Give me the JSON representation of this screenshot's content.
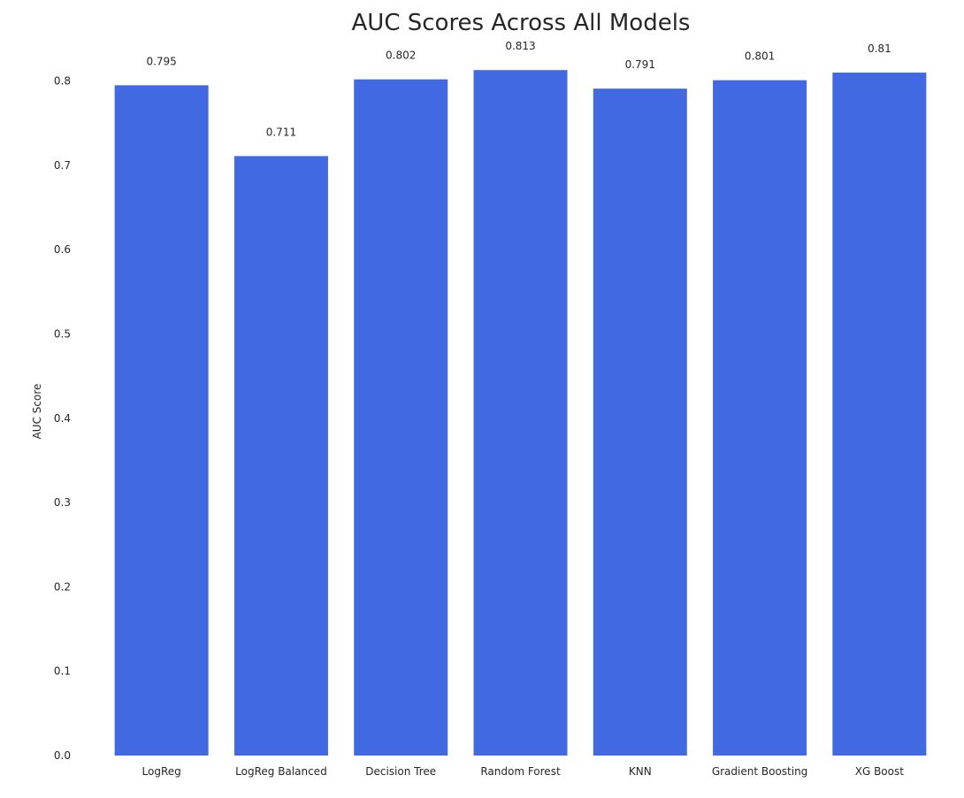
{
  "chart_data": {
    "type": "bar",
    "title": "AUC Scores Across All Models",
    "xlabel": "",
    "ylabel": "AUC Score",
    "categories": [
      "LogReg",
      "LogReg Balanced",
      "Decision Tree",
      "Random Forest",
      "KNN",
      "Gradient Boosting",
      "XG Boost"
    ],
    "values": [
      0.795,
      0.711,
      0.802,
      0.813,
      0.791,
      0.801,
      0.81
    ],
    "data_labels": [
      "0.795",
      "0.711",
      "0.802",
      "0.813",
      "0.791",
      "0.801",
      "0.81"
    ],
    "yticks": [
      0.0,
      0.1,
      0.2,
      0.3,
      0.4,
      0.5,
      0.6,
      0.7,
      0.8
    ],
    "ytick_labels": [
      "0.0",
      "0.1",
      "0.2",
      "0.3",
      "0.4",
      "0.5",
      "0.6",
      "0.7",
      "0.8"
    ],
    "ylim": [
      0,
      0.8
    ],
    "grid": false,
    "legend": "none",
    "bar_color": "#4169e1"
  }
}
